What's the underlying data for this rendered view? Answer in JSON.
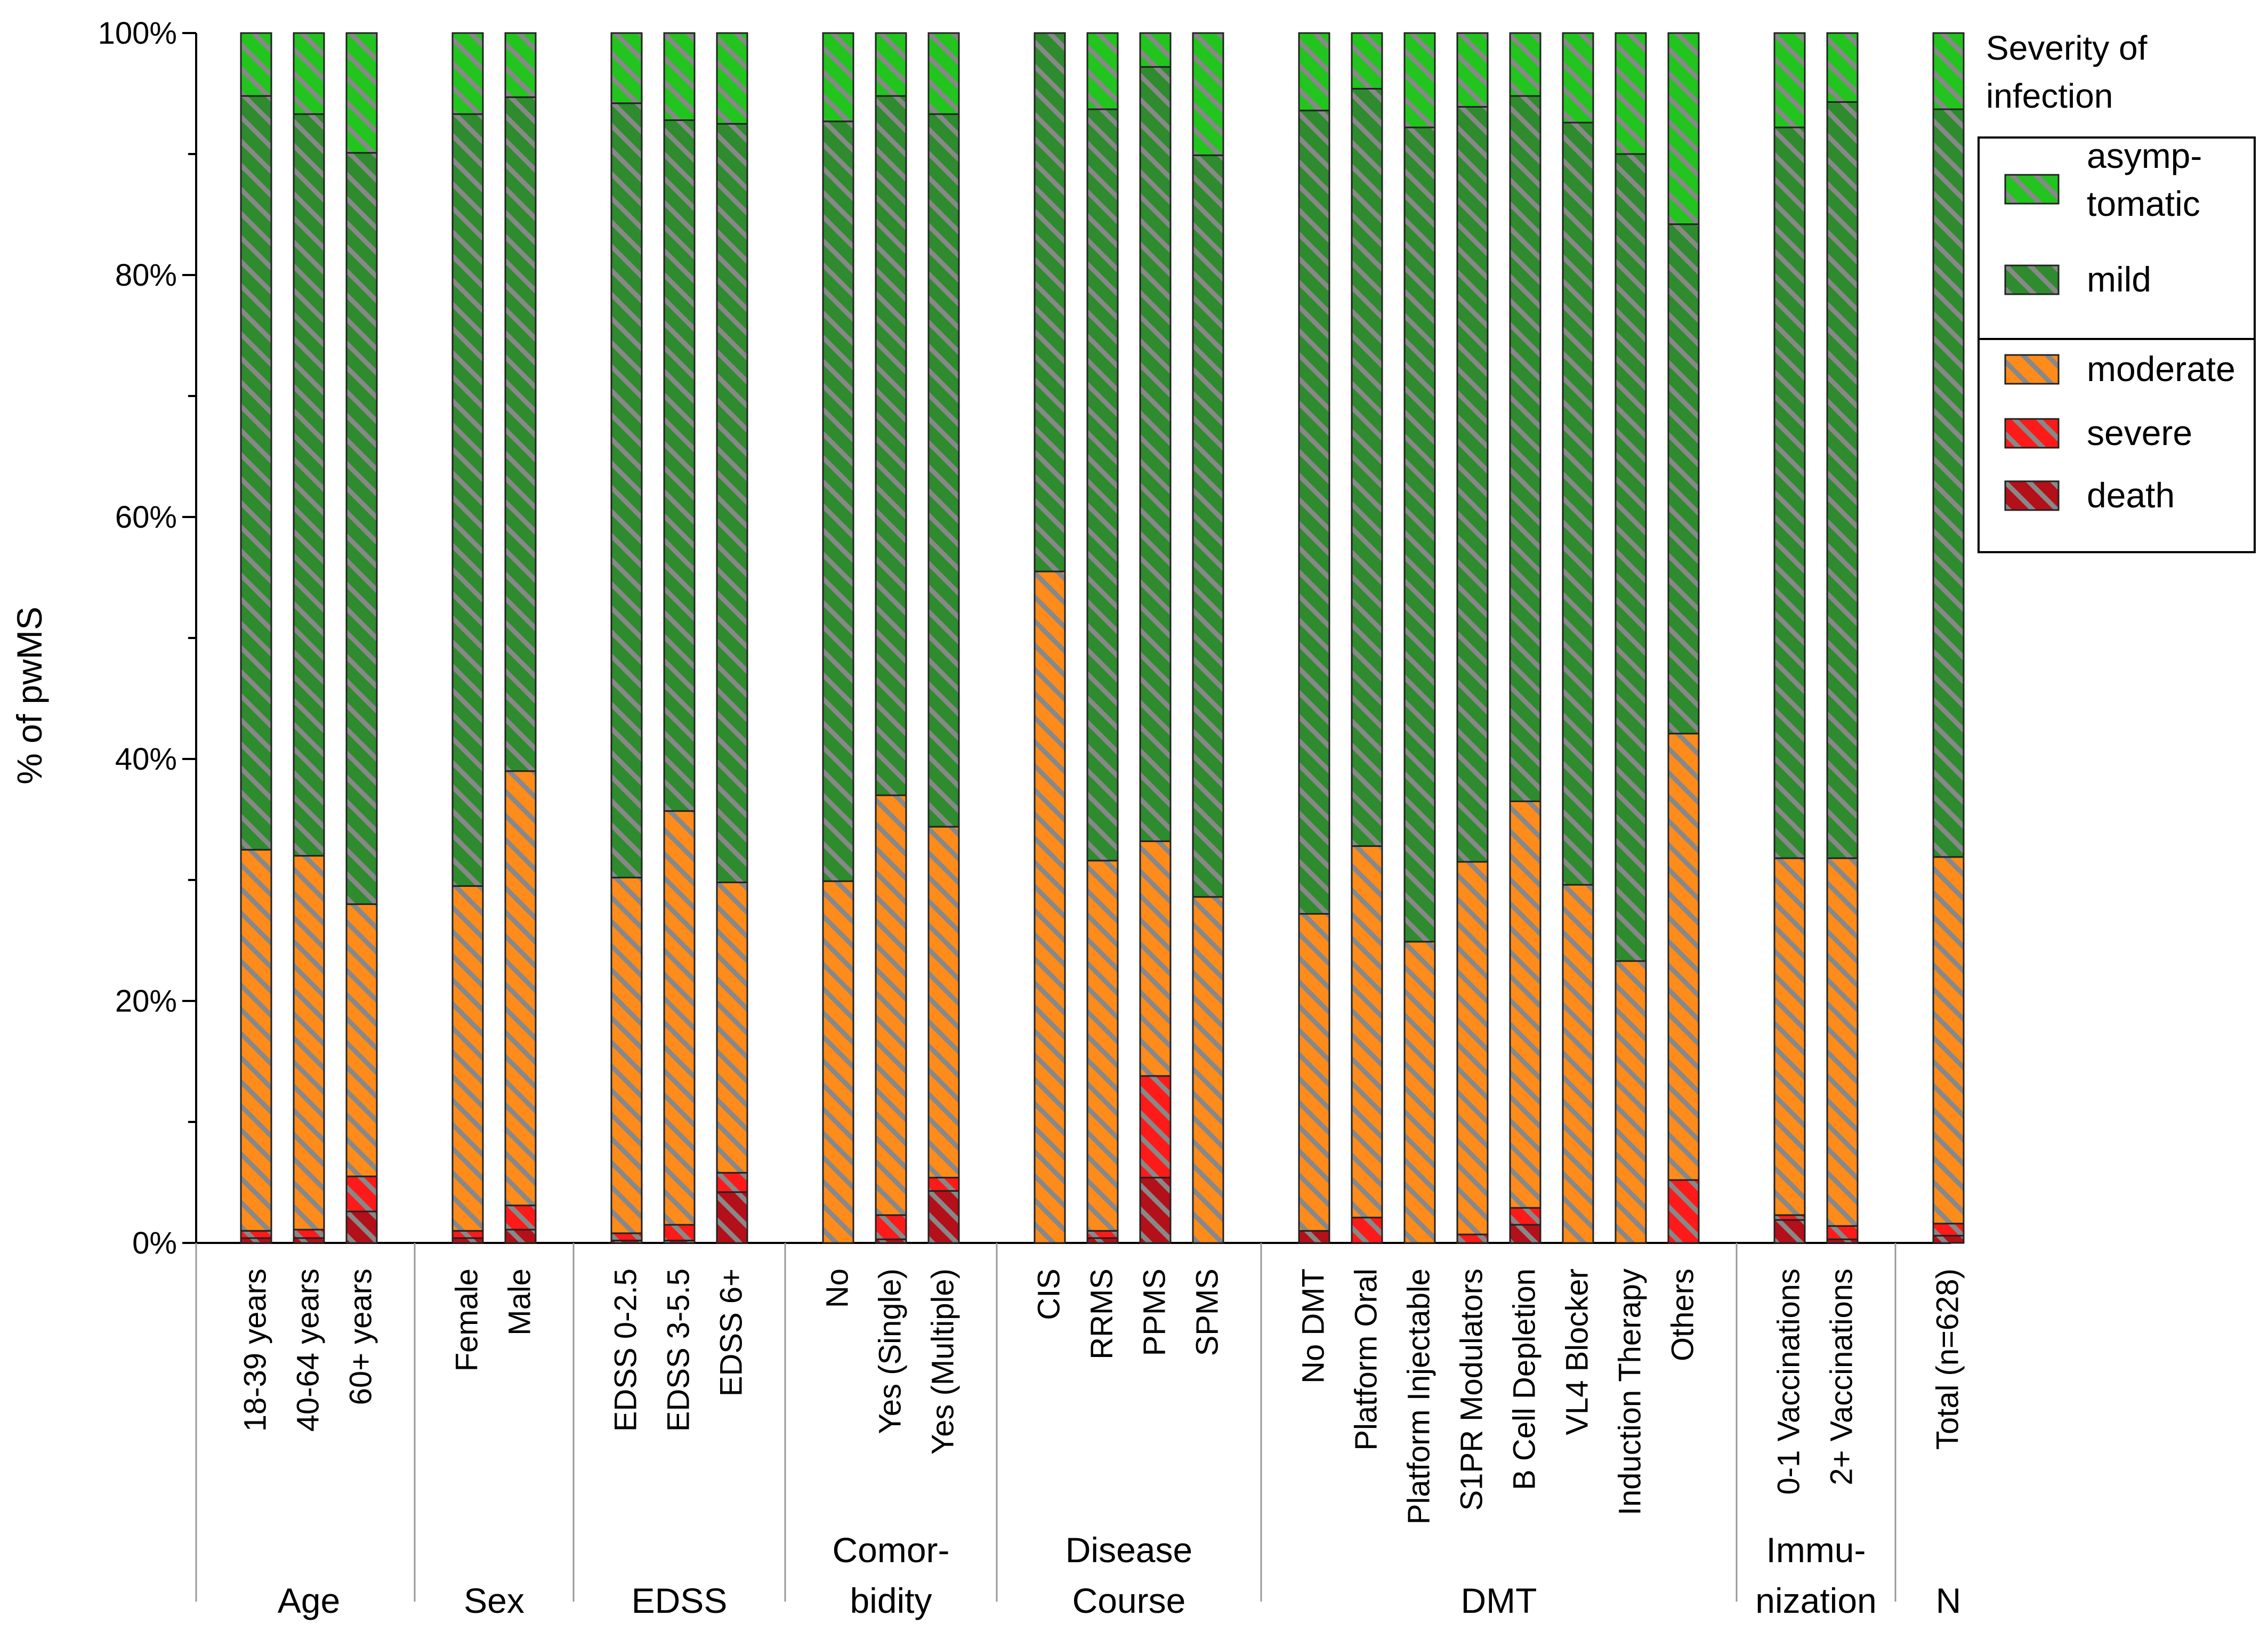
{
  "chart_data": {
    "type": "bar",
    "stacked": true,
    "ylabel": "% of pwMS",
    "ylim": [
      0,
      100
    ],
    "yticks": [
      "0%",
      "20%",
      "40%",
      "60%",
      "80%",
      "100%"
    ],
    "legend": {
      "title_lines": [
        "Severity  of",
        "infection"
      ],
      "placement": "top-right",
      "entries": [
        {
          "key": "asymptomatic",
          "label_lines": [
            "asymp-",
            "tomatic"
          ]
        },
        {
          "key": "mild",
          "label_lines": [
            "mild"
          ]
        },
        {
          "key": "moderate",
          "label_lines": [
            "moderate"
          ]
        },
        {
          "key": "severe",
          "label_lines": [
            "severe"
          ]
        },
        {
          "key": "death",
          "label_lines": [
            "death"
          ]
        }
      ]
    },
    "series_order": [
      "death",
      "severe",
      "moderate",
      "mild",
      "asymptomatic"
    ],
    "colors": {
      "asymptomatic": "#22c41e",
      "mild": "#2e8b2e",
      "moderate": "#ff8c1a",
      "severe": "#ff1a1a",
      "death": "#b3101a",
      "stripe": "#888888"
    },
    "groups": [
      {
        "lines": [
          "Age"
        ],
        "categories": [
          "18-39 years",
          "40-64 years",
          "60+ years"
        ]
      },
      {
        "lines": [
          "Sex"
        ],
        "categories": [
          "Female",
          "Male"
        ]
      },
      {
        "lines": [
          "EDSS"
        ],
        "categories": [
          "EDSS 0-2.5",
          "EDSS 3-5.5",
          "EDSS 6+"
        ]
      },
      {
        "lines": [
          "Comor-",
          "bidity"
        ],
        "categories": [
          "No",
          "Yes (Single)",
          "Yes (Multiple)"
        ]
      },
      {
        "lines": [
          "Disease",
          "Course"
        ],
        "categories": [
          "CIS",
          "RRMS",
          "PPMS",
          "SPMS"
        ]
      },
      {
        "lines": [
          "DMT"
        ],
        "categories": [
          "No DMT",
          "Platform Oral",
          "Platform Injectable",
          "S1PR Modulators",
          "B Cell Depletion",
          "VL4 Blocker",
          "Induction Therapy",
          "Others"
        ]
      },
      {
        "lines": [
          "Immu-",
          "nization"
        ],
        "categories": [
          "0-1 Vaccinations",
          "2+ Vaccinations"
        ]
      },
      {
        "lines": [
          "N"
        ],
        "categories": [
          "Total (n=628)"
        ]
      }
    ],
    "bars": [
      {
        "category": "18-39 years",
        "death": 0.4,
        "severe": 0.6,
        "moderate": 31.5,
        "mild": 62.3,
        "asymptomatic": 5.2
      },
      {
        "category": "40-64 years",
        "death": 0.4,
        "severe": 0.7,
        "moderate": 30.9,
        "mild": 61.3,
        "asymptomatic": 6.7
      },
      {
        "category": "60+ years",
        "death": 2.6,
        "severe": 2.9,
        "moderate": 22.5,
        "mild": 62.1,
        "asymptomatic": 9.9
      },
      {
        "category": "Female",
        "death": 0.4,
        "severe": 0.6,
        "moderate": 28.5,
        "mild": 63.8,
        "asymptomatic": 6.7
      },
      {
        "category": "Male",
        "death": 1.1,
        "severe": 2.0,
        "moderate": 35.9,
        "mild": 55.7,
        "asymptomatic": 5.3
      },
      {
        "category": "EDSS 0-2.5",
        "death": 0.2,
        "severe": 0.6,
        "moderate": 29.4,
        "mild": 64.0,
        "asymptomatic": 5.8
      },
      {
        "category": "EDSS 3-5.5",
        "death": 0.2,
        "severe": 1.3,
        "moderate": 34.2,
        "mild": 57.1,
        "asymptomatic": 7.2
      },
      {
        "category": "EDSS 6+",
        "death": 4.2,
        "severe": 1.6,
        "moderate": 24.0,
        "mild": 62.7,
        "asymptomatic": 7.5
      },
      {
        "category": "No",
        "death": 0.0,
        "severe": 0.0,
        "moderate": 29.9,
        "mild": 62.8,
        "asymptomatic": 7.3
      },
      {
        "category": "Yes (Single)",
        "death": 0.3,
        "severe": 2.0,
        "moderate": 34.7,
        "mild": 57.8,
        "asymptomatic": 5.2
      },
      {
        "category": "Yes (Multiple)",
        "death": 4.3,
        "severe": 1.1,
        "moderate": 29.0,
        "mild": 58.9,
        "asymptomatic": 6.7
      },
      {
        "category": "CIS",
        "death": 0.0,
        "severe": 0.0,
        "moderate": 55.5,
        "mild": 44.5,
        "asymptomatic": 0.0
      },
      {
        "category": "RRMS",
        "death": 0.4,
        "severe": 0.6,
        "moderate": 30.6,
        "mild": 62.1,
        "asymptomatic": 6.3
      },
      {
        "category": "PPMS",
        "death": 5.4,
        "severe": 8.4,
        "moderate": 19.4,
        "mild": 64.0,
        "asymptomatic": 2.8
      },
      {
        "category": "SPMS",
        "death": 0.0,
        "severe": 0.0,
        "moderate": 28.6,
        "mild": 61.3,
        "asymptomatic": 10.1
      },
      {
        "category": "No DMT",
        "death": 1.0,
        "severe": 0.0,
        "moderate": 26.2,
        "mild": 66.4,
        "asymptomatic": 6.4
      },
      {
        "category": "Platform Oral",
        "death": 0.0,
        "severe": 2.1,
        "moderate": 30.7,
        "mild": 62.6,
        "asymptomatic": 4.6
      },
      {
        "category": "Platform Injectable",
        "death": 0.0,
        "severe": 0.0,
        "moderate": 24.9,
        "mild": 67.3,
        "asymptomatic": 7.8
      },
      {
        "category": "S1PR Modulators",
        "death": 0.0,
        "severe": 0.7,
        "moderate": 30.8,
        "mild": 62.4,
        "asymptomatic": 6.1
      },
      {
        "category": "B Cell Depletion",
        "death": 1.5,
        "severe": 1.4,
        "moderate": 33.6,
        "mild": 58.3,
        "asymptomatic": 5.2
      },
      {
        "category": "VL4 Blocker",
        "death": 0.0,
        "severe": 0.0,
        "moderate": 29.6,
        "mild": 63.0,
        "asymptomatic": 7.4
      },
      {
        "category": "Induction Therapy",
        "death": 0.0,
        "severe": 0.0,
        "moderate": 23.3,
        "mild": 66.7,
        "asymptomatic": 10.0
      },
      {
        "category": "Others",
        "death": 0.0,
        "severe": 5.2,
        "moderate": 36.9,
        "mild": 42.1,
        "asymptomatic": 15.8
      },
      {
        "category": "0-1 Vaccinations",
        "death": 1.9,
        "severe": 0.4,
        "moderate": 29.5,
        "mild": 60.4,
        "asymptomatic": 7.8
      },
      {
        "category": "2+ Vaccinations",
        "death": 0.3,
        "severe": 1.1,
        "moderate": 30.4,
        "mild": 62.5,
        "asymptomatic": 5.7
      },
      {
        "category": "Total (n=628)",
        "death": 0.6,
        "severe": 1.0,
        "moderate": 30.3,
        "mild": 61.8,
        "asymptomatic": 6.3
      }
    ]
  }
}
